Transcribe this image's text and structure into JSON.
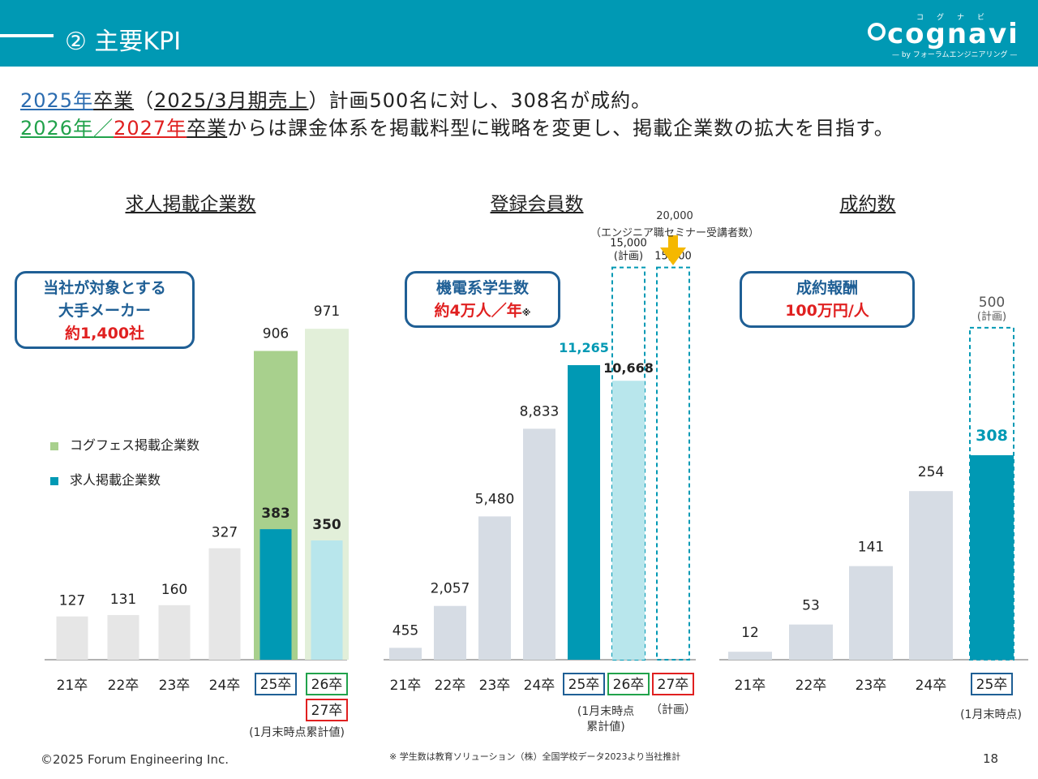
{
  "header": {
    "title": "② 主要KPI"
  },
  "logo": {
    "ruby": "コグナビ",
    "wordmark": "cognavi",
    "sub": "— by フォーラムエンジニアリング —"
  },
  "lead": {
    "l1_a": "2025年",
    "l1_b": "卒業",
    "l1_c": "（",
    "l1_d": "2025/3月期売上",
    "l1_e": "）計画500名に対し、308名が成約。",
    "l2_a": "2026年",
    "l2_b": "／",
    "l2_c": "2027年",
    "l2_d": "卒業",
    "l2_e": "からは課金体系を掲載料型に戦略を変更し、掲載企業数の拡大を目指す。"
  },
  "callouts": {
    "left": {
      "l1": "当社が対象とする",
      "l2": "大手メーカー",
      "l3": "約1,400社"
    },
    "mid": {
      "l1": "機電系学生数",
      "l2": "約4万人／年",
      "l2_mark": "※"
    },
    "right": {
      "l1": "成約報酬",
      "l2": "100万円/人"
    }
  },
  "annotations": {
    "seminar_value": "20,000",
    "seminar_label": "（エンジニア職セミナー受講者数）",
    "left_note": "(1月末時点累計値)",
    "mid_note_25_1": "(1月末時点",
    "mid_note_25_2": "累計値)",
    "mid_note_27": "（計画）",
    "right_note": "(1月末時点)"
  },
  "footer": {
    "copyright": "©2025 Forum Engineering Inc.",
    "source": "※ 学生数は教育ソリューション（株）全国学校データ2023より当社推計",
    "page": "18"
  },
  "colors": {
    "header": "#0099b4",
    "teal": "#0099b4",
    "light_teal": "#b8e6ec",
    "green": "#a8d08d",
    "light_green": "#e2efd9",
    "gray": "#e6e6e6",
    "bluegray": "#d6dce4"
  },
  "chart_data": [
    {
      "type": "bar",
      "title": "求人掲載企業数",
      "categories": [
        "21卒",
        "22卒",
        "23卒",
        "24卒",
        "25卒",
        "26卒"
      ],
      "extra_category": "27卒",
      "series": [
        {
          "name": "コグフェス掲載企業数",
          "values": [
            null,
            null,
            null,
            null,
            906,
            971
          ]
        },
        {
          "name": "求人掲載企業数",
          "values": [
            127,
            131,
            160,
            327,
            383,
            350
          ]
        }
      ]
    },
    {
      "type": "bar",
      "title": "登録会員数",
      "categories": [
        "21卒",
        "22卒",
        "23卒",
        "24卒",
        "25卒",
        "26卒",
        "27卒"
      ],
      "values": [
        455,
        2057,
        5480,
        8833,
        11265,
        10668,
        null
      ],
      "plan": [
        null,
        null,
        null,
        null,
        null,
        15000,
        15000
      ],
      "plan_label": "(計画)",
      "seminar_target": 20000
    },
    {
      "type": "bar",
      "title": "成約数",
      "categories": [
        "21卒",
        "22卒",
        "23卒",
        "24卒",
        "25卒"
      ],
      "values": [
        12,
        53,
        141,
        254,
        308
      ],
      "plan": [
        null,
        null,
        null,
        null,
        500
      ],
      "plan_label": "(計画)"
    }
  ]
}
